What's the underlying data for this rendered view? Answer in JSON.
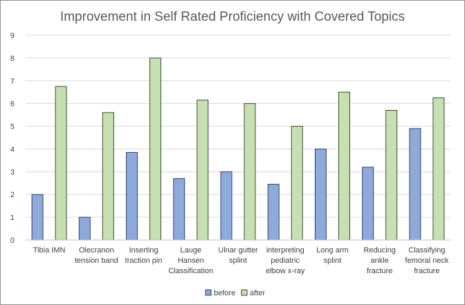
{
  "chart_data": {
    "type": "bar",
    "title": "Improvement in Self Rated Proficiency with Covered Topics",
    "xlabel": "",
    "ylabel": "",
    "ylim": [
      0,
      9
    ],
    "yticks": [
      "0",
      "1",
      "2",
      "3",
      "4",
      "5",
      "6",
      "7",
      "8",
      "9"
    ],
    "grid": true,
    "legend_position": "bottom",
    "categories": [
      [
        "Tibia IMN"
      ],
      [
        "Olecranon",
        "tension band"
      ],
      [
        "Inserting",
        "traction pin"
      ],
      [
        "Lauge",
        "Hansen",
        "Classification"
      ],
      [
        "Ulnar gutter",
        "splint"
      ],
      [
        "interpreting",
        "pediatric",
        "elbow x-ray"
      ],
      [
        "Long arm",
        "splint"
      ],
      [
        "Reducing",
        "ankle",
        "fracture"
      ],
      [
        "Classifying",
        "femoral neck",
        "fracture"
      ]
    ],
    "series": [
      {
        "name": "before",
        "color": "#8eaadb",
        "stroke": "#2f3f6a",
        "values": [
          2.0,
          1.0,
          3.85,
          2.7,
          3.0,
          2.45,
          4.0,
          3.2,
          4.9
        ]
      },
      {
        "name": "after",
        "color": "#c6e0b4",
        "stroke": "#3a4a2a",
        "values": [
          6.75,
          5.6,
          8.0,
          6.15,
          6.0,
          5.0,
          6.5,
          5.7,
          6.25
        ]
      }
    ]
  }
}
